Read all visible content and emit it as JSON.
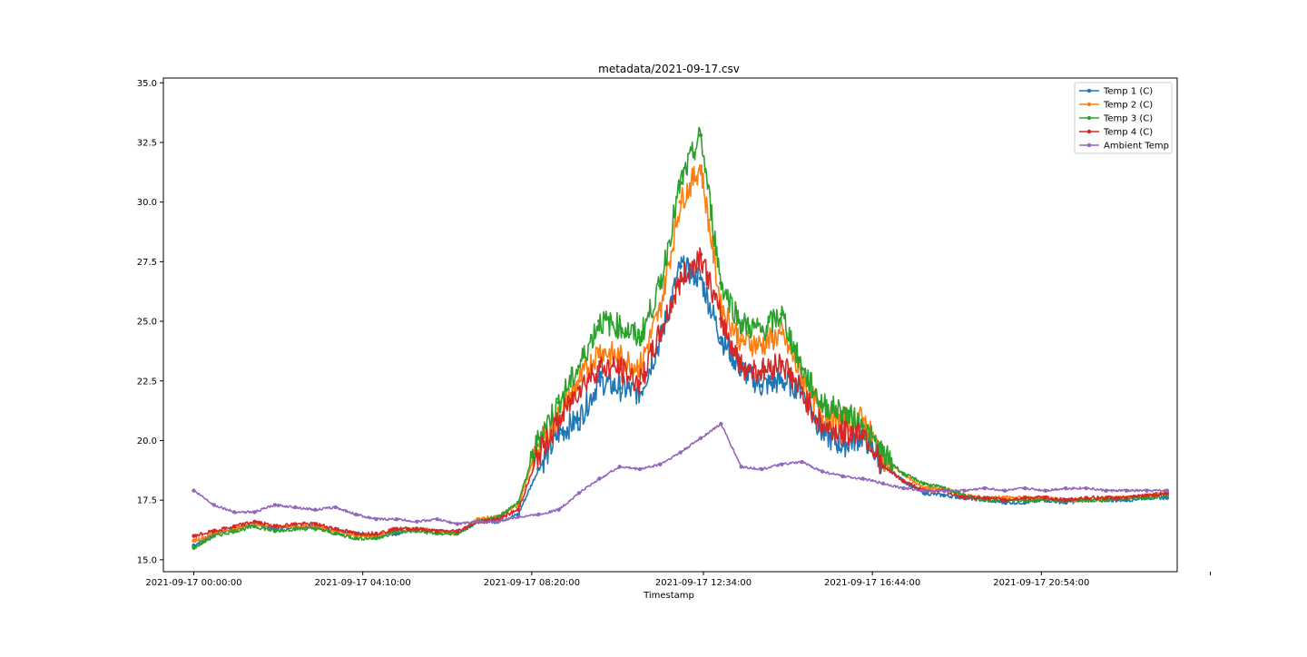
{
  "chart_data": {
    "type": "line",
    "title": "metadata/2021-09-17.csv",
    "xlabel": "Timestamp",
    "ylabel": "",
    "x_unit": "hours since 2021-09-17 00:00:00",
    "xlim": [
      -0.75,
      24.25
    ],
    "ylim": [
      14.5,
      35.2
    ],
    "grid": false,
    "legend_position": "top-right",
    "x_ticks": [
      {
        "value": 0,
        "label": "2021-09-17 00:00:00"
      },
      {
        "value": 4.1667,
        "label": "2021-09-17 04:10:00"
      },
      {
        "value": 8.3333,
        "label": "2021-09-17 08:20:00"
      },
      {
        "value": 12.5667,
        "label": "2021-09-17 12:34:00"
      },
      {
        "value": 16.7333,
        "label": "2021-09-17 16:44:00"
      },
      {
        "value": 20.9,
        "label": "2021-09-17 20:54:00"
      },
      {
        "value": 25.0667,
        "label": ""
      }
    ],
    "y_ticks": [
      {
        "value": 15.0,
        "label": "15.0"
      },
      {
        "value": 17.5,
        "label": "17.5"
      },
      {
        "value": 20.0,
        "label": "20.0"
      },
      {
        "value": 22.5,
        "label": "22.5"
      },
      {
        "value": 25.0,
        "label": "25.0"
      },
      {
        "value": 27.5,
        "label": "27.5"
      },
      {
        "value": 30.0,
        "label": "30.0"
      },
      {
        "value": 32.5,
        "label": "32.5"
      },
      {
        "value": 35.0,
        "label": "35.0"
      }
    ],
    "x": [
      0,
      0.5,
      1,
      1.5,
      2,
      2.5,
      3,
      3.5,
      4,
      4.5,
      5,
      5.5,
      6,
      6.5,
      7,
      7.5,
      8,
      8.5,
      9,
      9.5,
      10,
      10.5,
      11,
      11.5,
      12,
      12.5,
      13,
      13.5,
      14,
      14.5,
      15,
      15.5,
      16,
      16.5,
      17,
      17.5,
      18,
      18.5,
      19,
      19.5,
      20,
      20.5,
      21,
      21.5,
      22,
      22.5,
      23,
      23.5,
      24
    ],
    "series": [
      {
        "name": "Temp 1 (C)",
        "color": "#1f77b4",
        "values": [
          15.6,
          16.1,
          16.3,
          16.5,
          16.3,
          16.4,
          16.4,
          16.2,
          16.1,
          16.0,
          16.1,
          16.3,
          16.2,
          16.1,
          16.6,
          16.6,
          16.9,
          18.8,
          20.3,
          20.9,
          22.5,
          22.2,
          22.0,
          24.2,
          27.3,
          26.8,
          24.3,
          23.0,
          22.3,
          22.5,
          22.2,
          20.3,
          19.8,
          20.2,
          19.0,
          18.3,
          17.8,
          17.7,
          17.6,
          17.5,
          17.4,
          17.4,
          17.5,
          17.4,
          17.5,
          17.5,
          17.5,
          17.6,
          17.6
        ]
      },
      {
        "name": "Temp 2 (C)",
        "color": "#ff7f0e",
        "values": [
          15.8,
          16.1,
          16.3,
          16.5,
          16.4,
          16.4,
          16.4,
          16.2,
          16.0,
          16.0,
          16.2,
          16.3,
          16.2,
          16.1,
          16.7,
          16.8,
          17.3,
          19.8,
          21.0,
          22.5,
          23.8,
          23.5,
          23.1,
          25.5,
          30.0,
          31.5,
          25.6,
          24.2,
          24.0,
          24.5,
          22.6,
          21.0,
          20.9,
          20.9,
          19.3,
          18.6,
          18.0,
          18.0,
          17.7,
          17.6,
          17.6,
          17.6,
          17.6,
          17.5,
          17.5,
          17.6,
          17.6,
          17.7,
          17.8
        ]
      },
      {
        "name": "Temp 3 (C)",
        "color": "#2ca02c",
        "values": [
          15.5,
          16.0,
          16.2,
          16.4,
          16.2,
          16.3,
          16.3,
          16.1,
          15.9,
          15.9,
          16.2,
          16.2,
          16.1,
          16.1,
          16.6,
          16.8,
          17.4,
          20.1,
          21.6,
          23.1,
          25.0,
          24.8,
          24.3,
          26.5,
          30.8,
          32.8,
          26.6,
          24.9,
          24.6,
          25.3,
          23.0,
          21.5,
          21.2,
          20.6,
          19.4,
          18.6,
          18.2,
          18.0,
          17.7,
          17.5,
          17.5,
          17.5,
          17.5,
          17.5,
          17.5,
          17.5,
          17.6,
          17.6,
          17.7
        ]
      },
      {
        "name": "Temp 4 (C)",
        "color": "#d62728",
        "values": [
          16.0,
          16.2,
          16.4,
          16.6,
          16.4,
          16.5,
          16.5,
          16.3,
          16.1,
          16.1,
          16.3,
          16.3,
          16.2,
          16.2,
          16.6,
          16.7,
          17.1,
          19.4,
          20.8,
          22.2,
          23.1,
          23.0,
          22.4,
          24.5,
          26.7,
          27.8,
          25.1,
          23.1,
          22.9,
          23.3,
          22.0,
          20.6,
          20.3,
          20.4,
          18.9,
          18.3,
          17.9,
          17.9,
          17.6,
          17.6,
          17.5,
          17.6,
          17.6,
          17.5,
          17.6,
          17.6,
          17.6,
          17.7,
          17.8
        ]
      },
      {
        "name": "Ambient Temp",
        "color": "#9467bd",
        "values": [
          17.9,
          17.3,
          17.0,
          17.0,
          17.3,
          17.2,
          17.1,
          17.2,
          16.9,
          16.7,
          16.7,
          16.6,
          16.7,
          16.5,
          16.6,
          16.6,
          16.8,
          16.9,
          17.1,
          17.8,
          18.4,
          18.9,
          18.8,
          19.0,
          19.5,
          20.1,
          20.7,
          18.9,
          18.8,
          19.0,
          19.1,
          18.7,
          18.5,
          18.4,
          18.2,
          18.0,
          17.9,
          17.9,
          17.9,
          18.0,
          17.9,
          18.0,
          17.9,
          18.0,
          18.0,
          17.9,
          17.9,
          17.9,
          17.9
        ]
      }
    ]
  }
}
